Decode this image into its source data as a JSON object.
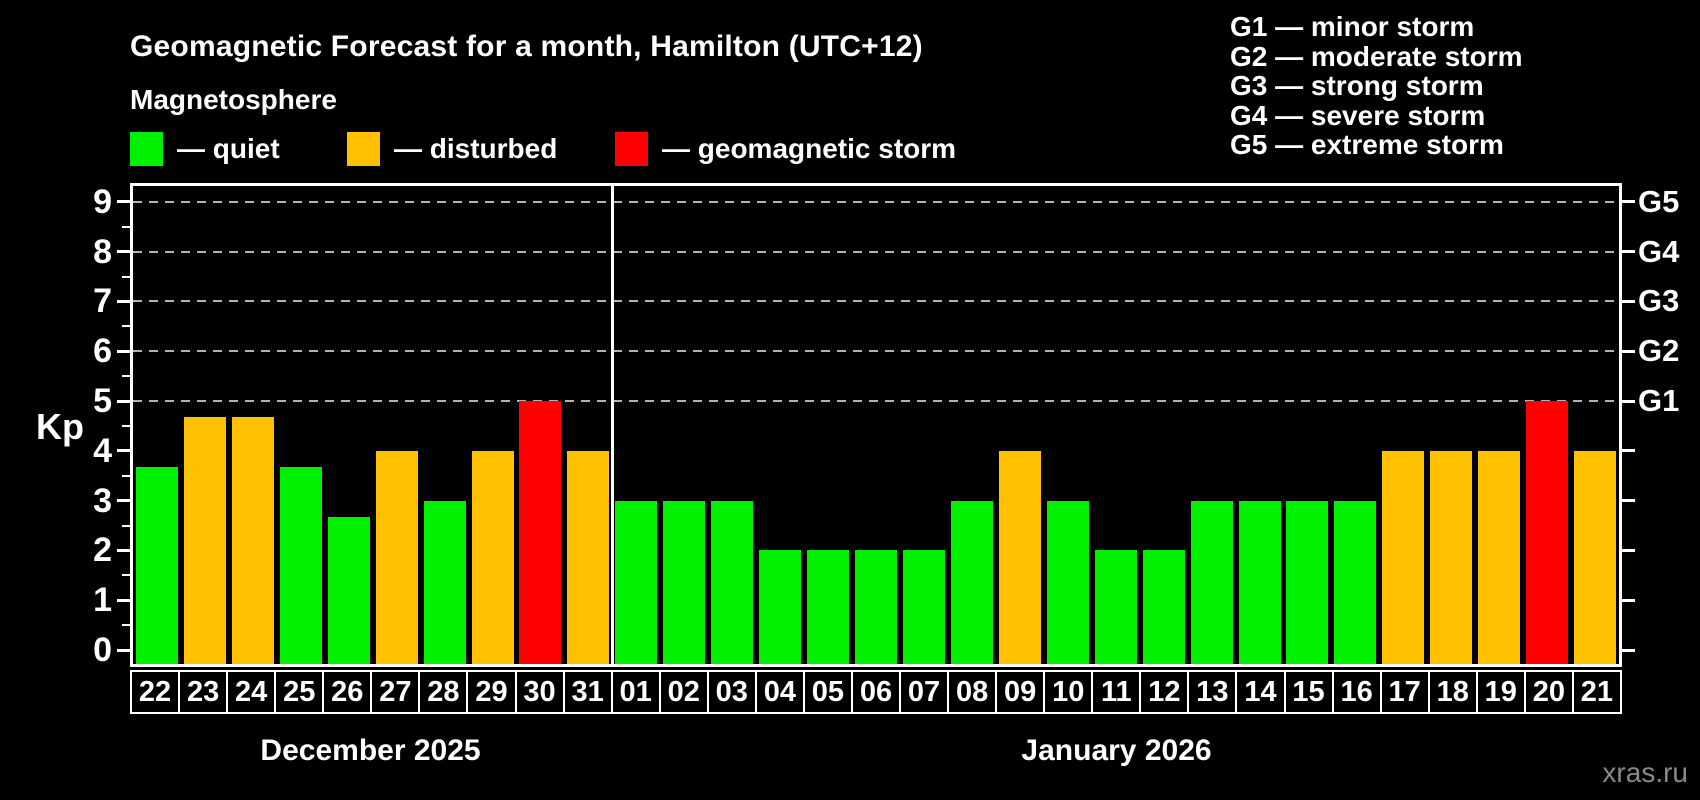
{
  "title": "Geomagnetic Forecast for a month, Hamilton (UTC+12)",
  "subtitle": "Magnetosphere",
  "colors": {
    "quiet": "#00f000",
    "disturbed": "#ffc000",
    "storm": "#ff0000",
    "gridline": "#b3b3b3",
    "axis": "#ffffff",
    "background": "#000000",
    "watermark": "#8a8a8a"
  },
  "color_legend": [
    {
      "label": "— quiet",
      "status": "quiet"
    },
    {
      "label": "— disturbed",
      "status": "disturbed"
    },
    {
      "label": "— geomagnetic storm",
      "status": "storm"
    }
  ],
  "g_legend": [
    "G1 — minor storm",
    "G2 — moderate storm",
    "G3 — strong storm",
    "G4 — severe storm",
    "G5 — extreme storm"
  ],
  "watermark": "xras.ru",
  "chart_data": {
    "type": "bar",
    "ylabel": "Kp",
    "ylim": [
      0,
      9
    ],
    "yticks": [
      0,
      1,
      2,
      3,
      4,
      5,
      6,
      7,
      8,
      9
    ],
    "gridlines_kp": [
      5,
      6,
      7,
      8,
      9
    ],
    "grid": "dashed horizontal at Kp 5-9",
    "legend_position": "top",
    "right_axis_labels": [
      {
        "kp": 5,
        "label": "G1"
      },
      {
        "kp": 6,
        "label": "G2"
      },
      {
        "kp": 7,
        "label": "G3"
      },
      {
        "kp": 8,
        "label": "G4"
      },
      {
        "kp": 9,
        "label": "G5"
      }
    ],
    "groups": [
      {
        "label": "December 2025",
        "days": [
          {
            "day": "22",
            "kp": 3.67,
            "status": "quiet"
          },
          {
            "day": "23",
            "kp": 4.67,
            "status": "disturbed"
          },
          {
            "day": "24",
            "kp": 4.67,
            "status": "disturbed"
          },
          {
            "day": "25",
            "kp": 3.67,
            "status": "quiet"
          },
          {
            "day": "26",
            "kp": 2.67,
            "status": "quiet"
          },
          {
            "day": "27",
            "kp": 4,
            "status": "disturbed"
          },
          {
            "day": "28",
            "kp": 3,
            "status": "quiet"
          },
          {
            "day": "29",
            "kp": 4,
            "status": "disturbed"
          },
          {
            "day": "30",
            "kp": 5,
            "status": "storm"
          },
          {
            "day": "31",
            "kp": 4,
            "status": "disturbed"
          }
        ]
      },
      {
        "label": "January 2026",
        "days": [
          {
            "day": "01",
            "kp": 3,
            "status": "quiet"
          },
          {
            "day": "02",
            "kp": 3,
            "status": "quiet"
          },
          {
            "day": "03",
            "kp": 3,
            "status": "quiet"
          },
          {
            "day": "04",
            "kp": 2,
            "status": "quiet"
          },
          {
            "day": "05",
            "kp": 2,
            "status": "quiet"
          },
          {
            "day": "06",
            "kp": 2,
            "status": "quiet"
          },
          {
            "day": "07",
            "kp": 2,
            "status": "quiet"
          },
          {
            "day": "08",
            "kp": 3,
            "status": "quiet"
          },
          {
            "day": "09",
            "kp": 4,
            "status": "disturbed"
          },
          {
            "day": "10",
            "kp": 3,
            "status": "quiet"
          },
          {
            "day": "11",
            "kp": 2,
            "status": "quiet"
          },
          {
            "day": "12",
            "kp": 2,
            "status": "quiet"
          },
          {
            "day": "13",
            "kp": 3,
            "status": "quiet"
          },
          {
            "day": "14",
            "kp": 3,
            "status": "quiet"
          },
          {
            "day": "15",
            "kp": 3,
            "status": "quiet"
          },
          {
            "day": "16",
            "kp": 3,
            "status": "quiet"
          },
          {
            "day": "17",
            "kp": 4,
            "status": "disturbed"
          },
          {
            "day": "18",
            "kp": 4,
            "status": "disturbed"
          },
          {
            "day": "19",
            "kp": 4,
            "status": "disturbed"
          },
          {
            "day": "20",
            "kp": 5,
            "status": "storm"
          },
          {
            "day": "21",
            "kp": 4,
            "status": "disturbed"
          }
        ]
      }
    ]
  }
}
